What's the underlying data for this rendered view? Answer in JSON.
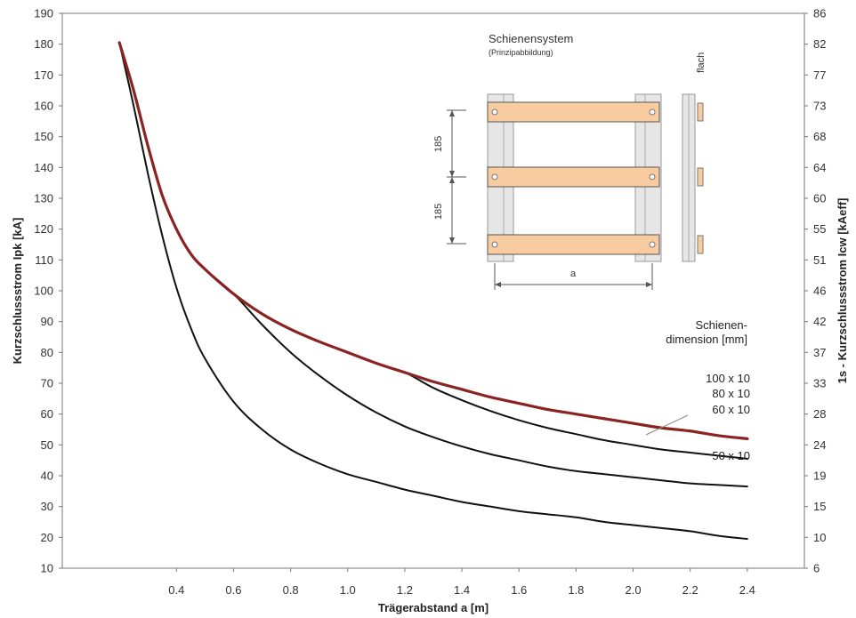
{
  "chart_data": {
    "type": "line",
    "title": "",
    "xlabel": "Trägerabstand a [m]",
    "ylabel": "Kurzschlussstrom  Ipk [kA]",
    "y2label": "1s - Kurzschlussstrom  Icw [kAeff]",
    "xlim": [
      0.0,
      2.6
    ],
    "ylim": [
      10,
      190
    ],
    "grid": false,
    "legend_position": "right",
    "x_ticks": [
      "0.4",
      "0.6",
      "0.8",
      "1.0",
      "1.2",
      "1.4",
      "1.6",
      "1.8",
      "2.0",
      "2.2",
      "2.4"
    ],
    "x_tick_values": [
      0.4,
      0.6,
      0.8,
      1.0,
      1.2,
      1.4,
      1.6,
      1.8,
      2.0,
      2.2,
      2.4
    ],
    "y_ticks": [
      "10",
      "20",
      "30",
      "40",
      "50",
      "60",
      "70",
      "80",
      "90",
      "100",
      "110",
      "120",
      "130",
      "140",
      "150",
      "160",
      "170",
      "180",
      "190"
    ],
    "y_tick_values": [
      10,
      20,
      30,
      40,
      50,
      60,
      70,
      80,
      90,
      100,
      110,
      120,
      130,
      140,
      150,
      160,
      170,
      180,
      190
    ],
    "y2_ticks": [
      "6",
      "10",
      "15",
      "19",
      "24",
      "28",
      "33",
      "37",
      "42",
      "46",
      "51",
      "55",
      "60",
      "64",
      "68",
      "73",
      "77",
      "82",
      "86"
    ],
    "legend_title": [
      "Schienen-",
      "dimension [mm]"
    ],
    "series": [
      {
        "name": "100 x 10",
        "color": "#8b2323",
        "x": [
          0.2,
          0.25,
          0.3,
          0.35,
          0.4,
          0.45,
          0.5,
          0.6,
          0.7,
          0.8,
          0.9,
          1.0,
          1.1,
          1.2,
          1.3,
          1.4,
          1.5,
          1.6,
          1.7,
          1.8,
          1.9,
          2.0,
          2.1,
          2.2,
          2.3,
          2.4
        ],
        "y": [
          180.5,
          165,
          147,
          131,
          120,
          112,
          107,
          99,
          92.5,
          87.5,
          83.5,
          80,
          76.5,
          73.5,
          70.5,
          68,
          65.5,
          63.5,
          61.5,
          60,
          58.5,
          57,
          55.5,
          54.5,
          53,
          52
        ]
      },
      {
        "name": "80 x 10",
        "color": "#111111",
        "x": [
          0.2,
          0.25,
          0.3,
          0.35,
          0.4,
          0.45,
          0.5,
          0.6,
          0.7,
          0.8,
          0.9,
          1.0,
          1.1,
          1.2,
          1.3,
          1.4,
          1.5,
          1.6,
          1.7,
          1.8,
          1.9,
          2.0,
          2.1,
          2.2,
          2.3,
          2.4
        ],
        "y": [
          180.5,
          165,
          147,
          131,
          120,
          112,
          107,
          99,
          92.5,
          87.5,
          83.5,
          80,
          76.5,
          73.5,
          68.5,
          64.5,
          61,
          58,
          55.5,
          53.5,
          51.5,
          50,
          48.5,
          47.5,
          46.5,
          45.5
        ]
      },
      {
        "name": "60 x 10",
        "color": "#111111",
        "x": [
          0.2,
          0.25,
          0.3,
          0.35,
          0.4,
          0.45,
          0.5,
          0.6,
          0.7,
          0.8,
          0.9,
          1.0,
          1.1,
          1.2,
          1.3,
          1.4,
          1.5,
          1.6,
          1.7,
          1.8,
          1.9,
          2.0,
          2.1,
          2.2,
          2.3,
          2.4
        ],
        "y": [
          180.5,
          165,
          147,
          131,
          120,
          112,
          107,
          99,
          89,
          80,
          72.5,
          66,
          60.5,
          56,
          52.5,
          49.5,
          47,
          45,
          43,
          41.5,
          40.5,
          39.5,
          38.5,
          37.5,
          37,
          36.5
        ]
      },
      {
        "name": "50 x 10",
        "color": "#111111",
        "x": [
          0.2,
          0.25,
          0.3,
          0.35,
          0.4,
          0.45,
          0.5,
          0.6,
          0.7,
          0.8,
          0.9,
          1.0,
          1.1,
          1.2,
          1.3,
          1.4,
          1.5,
          1.6,
          1.7,
          1.8,
          1.9,
          2.0,
          2.1,
          2.2,
          2.3,
          2.4
        ],
        "y": [
          180.5,
          160,
          138,
          118,
          101,
          88,
          78,
          64,
          55,
          48.5,
          44,
          40.5,
          38,
          35.5,
          33.5,
          31.5,
          30,
          28.5,
          27.5,
          26.5,
          25,
          24,
          23,
          22,
          20.5,
          19.5
        ]
      }
    ],
    "legend_labels": [
      "100 x 10",
      "80 x 10",
      "60 x 10",
      "50 x 10"
    ],
    "inset": {
      "title": "Schienensystem",
      "subtitle": "(Prinzipabbildung)",
      "side_label": "flach",
      "dimension_labels": [
        "185",
        "185"
      ],
      "span_label": "a",
      "bar_color": "#f8cca0",
      "rail_color": "#e6e6e6"
    }
  }
}
